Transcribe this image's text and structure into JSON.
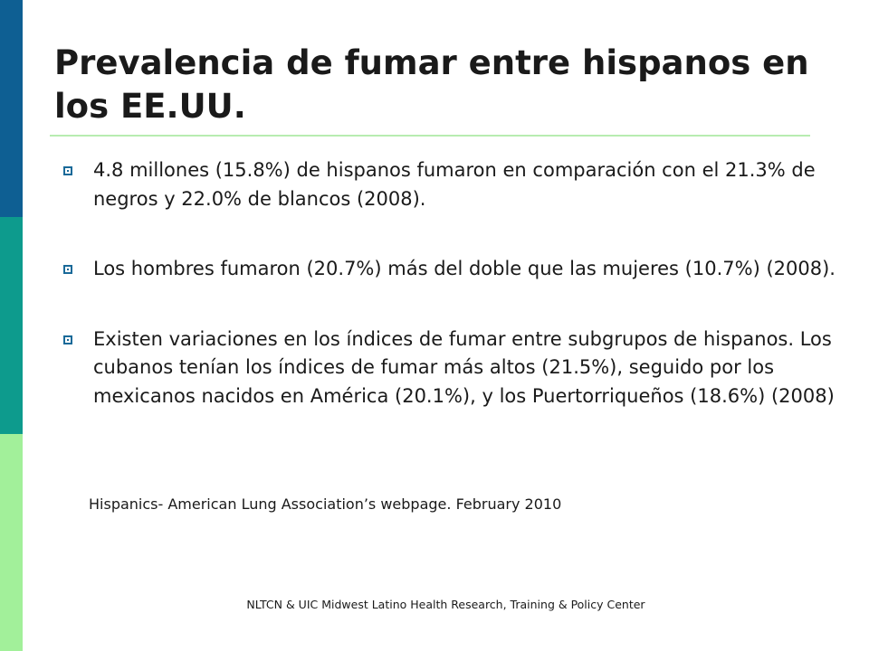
{
  "colors": {
    "bar_top": "#0e5f93",
    "bar_mid": "#0d9b8d",
    "bar_bottom": "#a2f09a",
    "rule": "#b8ecb0",
    "bullet": "#1a6a99"
  },
  "slide": {
    "title": "Prevalencia de fumar entre hispanos en los EE.UU.",
    "bullets": [
      "4.8 millones (15.8%) de hispanos fumaron en comparación con el 21.3% de negros y 22.0% de blancos (2008).",
      "Los hombres fumaron (20.7%) más del doble que las mujeres (10.7%) (2008).",
      "Existen variaciones en los índices de fumar entre subgrupos de hispanos.  Los cubanos tenían los índices de fumar más altos (21.5%), seguido por los mexicanos nacidos en América (20.1%), y los Puertorriqueños (18.6%) (2008)"
    ],
    "source": "Hispanics- American Lung Association’s webpage. February 2010",
    "footer": "NLTCN & UIC Midwest Latino Health Research, Training & Policy Center"
  }
}
